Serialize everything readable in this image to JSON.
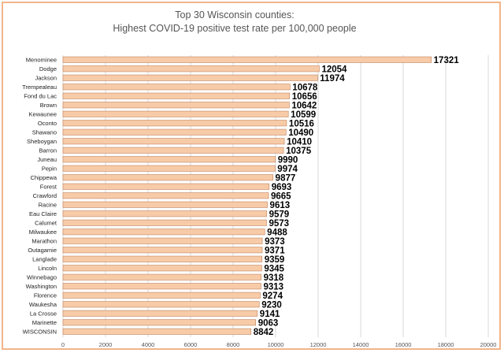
{
  "chart_data": {
    "type": "bar",
    "orientation": "horizontal",
    "title": "Top 30 Wisconsin counties:",
    "subtitle": "Highest COVID-19 positive test rate per 100,000 people",
    "categories": [
      "Menominee",
      "Dodge",
      "Jackson",
      "Trempealeau",
      "Fond du Lac",
      "Brown",
      "Kewaunee",
      "Oconto",
      "Shawano",
      "Sheboygan",
      "Barron",
      "Juneau",
      "Pepin",
      "Chippewa",
      "Forest",
      "Crawford",
      "Racine",
      "Eau Claire",
      "Calumet",
      "Milwaukee",
      "Marathon",
      "Outagamie",
      "Langlade",
      "Lincoln",
      "Winnebago",
      "Washington",
      "Florence",
      "Waukesha",
      "La Crosse",
      "Marinette",
      "WISCONSIN"
    ],
    "values": [
      17321,
      12054,
      11974,
      10678,
      10656,
      10642,
      10599,
      10516,
      10490,
      10410,
      10375,
      9990,
      9974,
      9877,
      9693,
      9665,
      9613,
      9579,
      9573,
      9488,
      9373,
      9371,
      9359,
      9345,
      9318,
      9313,
      9274,
      9230,
      9141,
      9063,
      8842
    ],
    "xlim": [
      0,
      20000
    ],
    "xticks": [
      "0",
      "2000",
      "4000",
      "6000",
      "8000",
      "10000",
      "12000",
      "14000",
      "16000",
      "18000",
      "20000"
    ],
    "xtick_values": [
      0,
      2000,
      4000,
      6000,
      8000,
      10000,
      12000,
      14000,
      16000,
      18000,
      20000
    ],
    "grid": true,
    "bar_color": "#f8cba8",
    "bar_edge_color": "#c0805a",
    "grid_color": "#d9d9d9",
    "border_color": "#f2b48a"
  }
}
